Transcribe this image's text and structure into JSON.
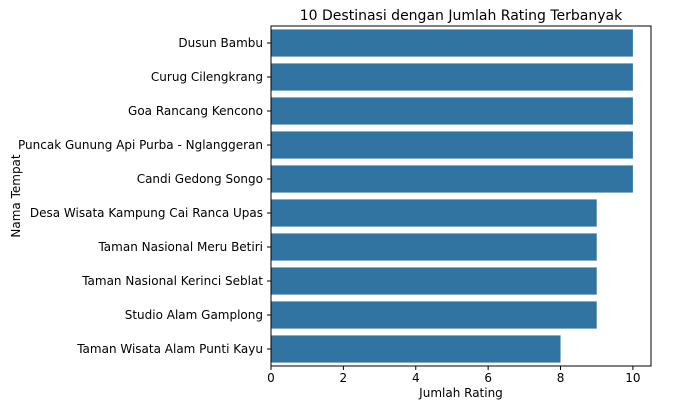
{
  "chart_data": {
    "type": "bar",
    "orientation": "horizontal",
    "title": "10 Destinasi dengan Jumlah Rating Terbanyak",
    "xlabel": "Jumlah Rating",
    "ylabel": "Nama Tempat",
    "categories": [
      "Dusun Bambu",
      "Curug Cilengkrang",
      "Goa Rancang Kencono",
      "Puncak Gunung Api Purba - Nglanggeran",
      "Candi Gedong Songo",
      "Desa Wisata Kampung Cai Ranca Upas",
      "Taman Nasional Meru Betiri",
      "Taman Nasional Kerinci Seblat",
      "Studio Alam Gamplong",
      "Taman Wisata Alam Punti Kayu"
    ],
    "values": [
      10,
      10,
      10,
      10,
      10,
      9,
      9,
      9,
      9,
      8
    ],
    "xlim": [
      0,
      10.5
    ],
    "xticks": [
      0,
      2,
      4,
      6,
      8,
      10
    ],
    "grid": false,
    "bar_color": "#3274a1"
  }
}
